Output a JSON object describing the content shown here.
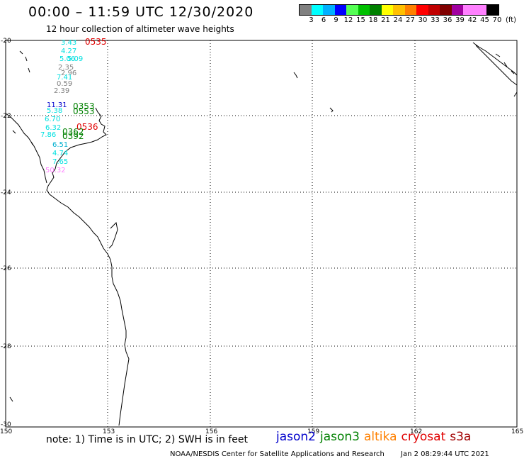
{
  "header": {
    "title": "00:00 – 11:59 UTC 12/30/2020",
    "subtitle": "12 hour collection of altimeter wave heights"
  },
  "legend": {
    "colors": [
      "#808080",
      "#00ffff",
      "#00b0ff",
      "#0000ff",
      "#55ff55",
      "#00c000",
      "#008000",
      "#ffff00",
      "#ffc000",
      "#ff8000",
      "#ff0000",
      "#c00000",
      "#800000",
      "#a000a0",
      "#ff80ff",
      "#ff80ff",
      "#000000"
    ],
    "labels": [
      "3",
      "6",
      "9",
      "12",
      "15",
      "18",
      "21",
      "24",
      "27",
      "30",
      "33",
      "36",
      "39",
      "42",
      "45",
      "70",
      "(ft)"
    ]
  },
  "axes": {
    "lat_labels": [
      "-20",
      "-22",
      "-24",
      "-26",
      "-28",
      "-30"
    ],
    "lon_labels": [
      "150",
      "153",
      "156",
      "159",
      "162",
      "165"
    ]
  },
  "observations": [
    {
      "text": "3.43",
      "color": "#00e0e0"
    },
    {
      "text": "0535",
      "color": "#e00000"
    },
    {
      "text": "4.27",
      "color": "#00e0e0"
    },
    {
      "text": "5.06",
      "color": "#00e0e0"
    },
    {
      "text": "5.09",
      "color": "#00e0e0"
    },
    {
      "text": "2.35",
      "color": "#808080"
    },
    {
      "text": "2.96",
      "color": "#808080"
    },
    {
      "text": "7.41",
      "color": "#00e0e0"
    },
    {
      "text": "0.59",
      "color": "#808080"
    },
    {
      "text": "2.39",
      "color": "#808080"
    },
    {
      "text": "11.31",
      "color": "#0000cc"
    },
    {
      "text": "0353",
      "color": "#008000"
    },
    {
      "text": "0553",
      "color": "#008000"
    },
    {
      "text": "5.38",
      "color": "#00e0e0"
    },
    {
      "text": "6.70",
      "color": "#00e0e0"
    },
    {
      "text": "6.32",
      "color": "#00e0e0"
    },
    {
      "text": "0536",
      "color": "#e00000"
    },
    {
      "text": "7.86",
      "color": "#00e0e0"
    },
    {
      "text": "0362",
      "color": "#008000"
    },
    {
      "text": "0392",
      "color": "#008000"
    },
    {
      "text": "6.51",
      "color": "#00b0d0"
    },
    {
      "text": "4.74",
      "color": "#00e0e0"
    },
    {
      "text": "7.65",
      "color": "#00e0e0"
    },
    {
      "text": "50.32",
      "color": "#ff80ff"
    }
  ],
  "footer": {
    "note": "note:  1) Time is in UTC;  2) SWH is in feet",
    "satellites": [
      {
        "name": "jason2",
        "color": "#0000cc"
      },
      {
        "name": "jason3",
        "color": "#008000"
      },
      {
        "name": "altika",
        "color": "#ff8000"
      },
      {
        "name": "cryosat",
        "color": "#e00000"
      },
      {
        "name": "s3a",
        "color": "#a00000"
      }
    ],
    "credit": "NOAA/NESDIS Center for Satellite Applications and Research",
    "generated": "Jan  2 08:29:44 UTC 2021"
  }
}
